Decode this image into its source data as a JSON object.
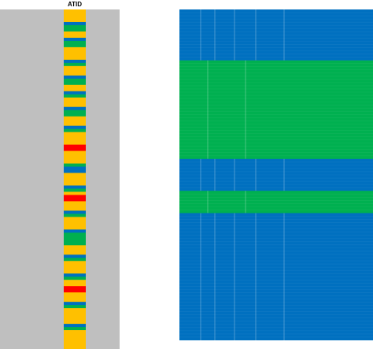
{
  "chart_data": [
    {
      "type": "heatmap",
      "title": "ATID",
      "background": "#bfbfbf",
      "category_colors": {
        "yellow": "#ffc000",
        "blue": "#0070c0",
        "green": "#00b050",
        "red": "#ff0000"
      },
      "rows": [
        "yellow",
        "yellow",
        "yellow",
        "yellow",
        "blue",
        "green",
        "green",
        "yellow",
        "yellow",
        "blue",
        "green",
        "green",
        "yellow",
        "yellow",
        "yellow",
        "yellow",
        "blue",
        "green",
        "yellow",
        "yellow",
        "yellow",
        "blue",
        "green",
        "green",
        "yellow",
        "yellow",
        "blue",
        "green",
        "yellow",
        "yellow",
        "yellow",
        "blue",
        "green",
        "green",
        "yellow",
        "yellow",
        "yellow",
        "blue",
        "green",
        "yellow",
        "yellow",
        "yellow",
        "yellow",
        "red",
        "red",
        "yellow",
        "yellow",
        "yellow",
        "yellow",
        "green",
        "blue",
        "blue",
        "yellow",
        "yellow",
        "yellow",
        "yellow",
        "blue",
        "green",
        "yellow",
        "red",
        "red",
        "yellow",
        "yellow",
        "yellow",
        "blue",
        "green",
        "yellow",
        "yellow",
        "yellow",
        "yellow",
        "blue",
        "green",
        "green",
        "green",
        "green",
        "yellow",
        "yellow",
        "yellow",
        "blue",
        "green",
        "yellow",
        "yellow",
        "yellow",
        "yellow",
        "blue",
        "green",
        "yellow",
        "yellow",
        "red",
        "red",
        "yellow",
        "yellow",
        "yellow",
        "blue",
        "green",
        "yellow",
        "yellow",
        "yellow",
        "yellow",
        "yellow",
        "blue",
        "green",
        "yellow",
        "yellow",
        "yellow",
        "yellow",
        "yellow",
        "yellow"
      ]
    },
    {
      "type": "heatmap",
      "title": "",
      "category_colors": {
        "blue": "#0070c0",
        "green": "#00b050"
      },
      "row_blocks": [
        {
          "color": "blue",
          "rows": 16
        },
        {
          "color": "green",
          "rows": 31
        },
        {
          "color": "blue",
          "rows": 10
        },
        {
          "color": "green",
          "rows": 7
        },
        {
          "color": "blue",
          "rows": 40
        }
      ]
    }
  ]
}
